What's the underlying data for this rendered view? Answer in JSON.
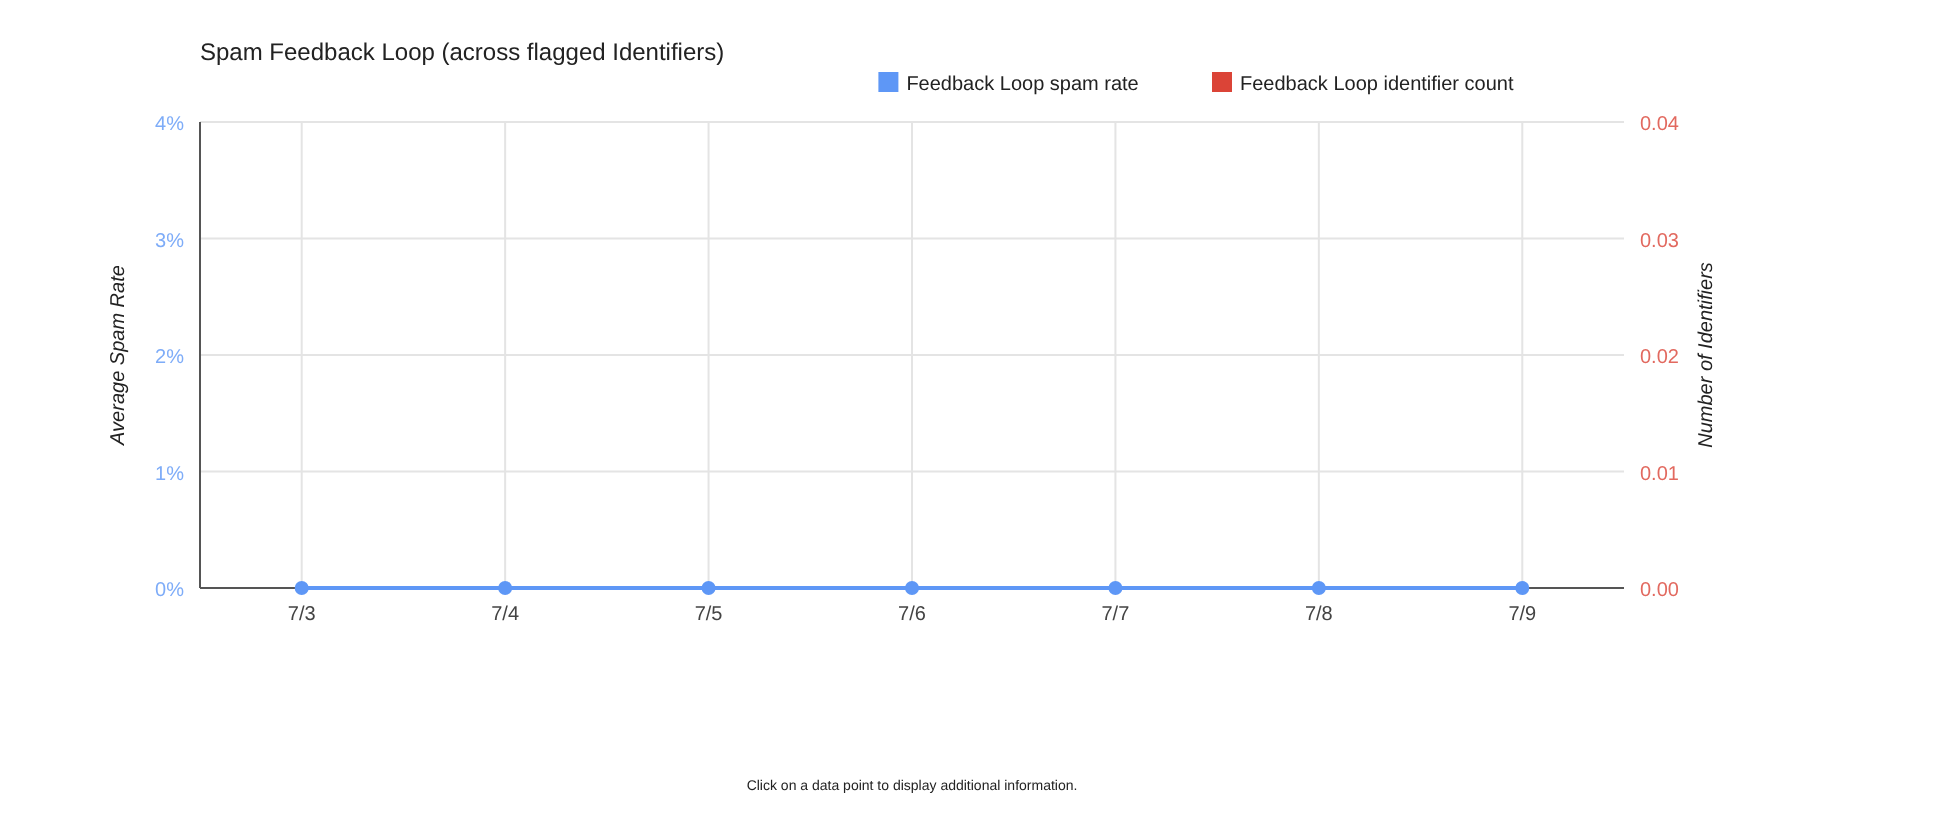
{
  "chart_data": {
    "type": "line",
    "title": "Spam Feedback Loop (across flagged Identifiers)",
    "ylabel": "Average Spam Rate",
    "y2label": "Number of Identifiers",
    "categories": [
      "7/3",
      "7/4",
      "7/5",
      "7/6",
      "7/7",
      "7/8",
      "7/9"
    ],
    "series": [
      {
        "name": "Feedback Loop spam rate",
        "color": "#5e97f6",
        "values": [
          0,
          0,
          0,
          0,
          0,
          0,
          0
        ]
      },
      {
        "name": "Feedback Loop identifier count",
        "color": "#db4437",
        "axis": "y2",
        "values": [
          null,
          null,
          null,
          null,
          null,
          null,
          null
        ]
      }
    ],
    "ylim": [
      0,
      4
    ],
    "yticks": [
      {
        "value": 0,
        "label": "0%"
      },
      {
        "value": 1,
        "label": "1%"
      },
      {
        "value": 2,
        "label": "2%"
      },
      {
        "value": 3,
        "label": "3%"
      },
      {
        "value": 4,
        "label": "4%"
      }
    ],
    "y2lim": [
      0,
      0.04
    ],
    "y2ticks": [
      {
        "value": 0,
        "label": "0.00"
      },
      {
        "value": 0.01,
        "label": "0.01"
      },
      {
        "value": 0.02,
        "label": "0.02"
      },
      {
        "value": 0.03,
        "label": "0.03"
      },
      {
        "value": 0.04,
        "label": "0.04"
      }
    ],
    "grid": true,
    "legend": "top right",
    "marker": "circle",
    "line_style": "solid",
    "annotations": [
      "Click on a data point to display additional information."
    ]
  }
}
